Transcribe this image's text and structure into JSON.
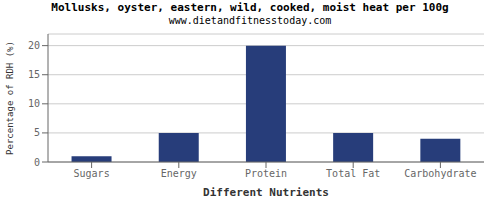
{
  "chart_data": {
    "type": "bar",
    "title": "Mollusks, oyster, eastern, wild, cooked, moist heat per 100g",
    "subtitle": "www.dietandfitnesstoday.com",
    "xlabel": "Different Nutrients",
    "ylabel": "Percentage of RDH (%)",
    "categories": [
      "Sugars",
      "Energy",
      "Protein",
      "Total Fat",
      "Carbohydrate"
    ],
    "values": [
      1,
      5,
      20,
      5,
      4
    ],
    "color": "#273d7a",
    "ylim": [
      0,
      22
    ],
    "yticks": [
      0,
      5,
      10,
      15,
      20
    ],
    "grid": true
  }
}
